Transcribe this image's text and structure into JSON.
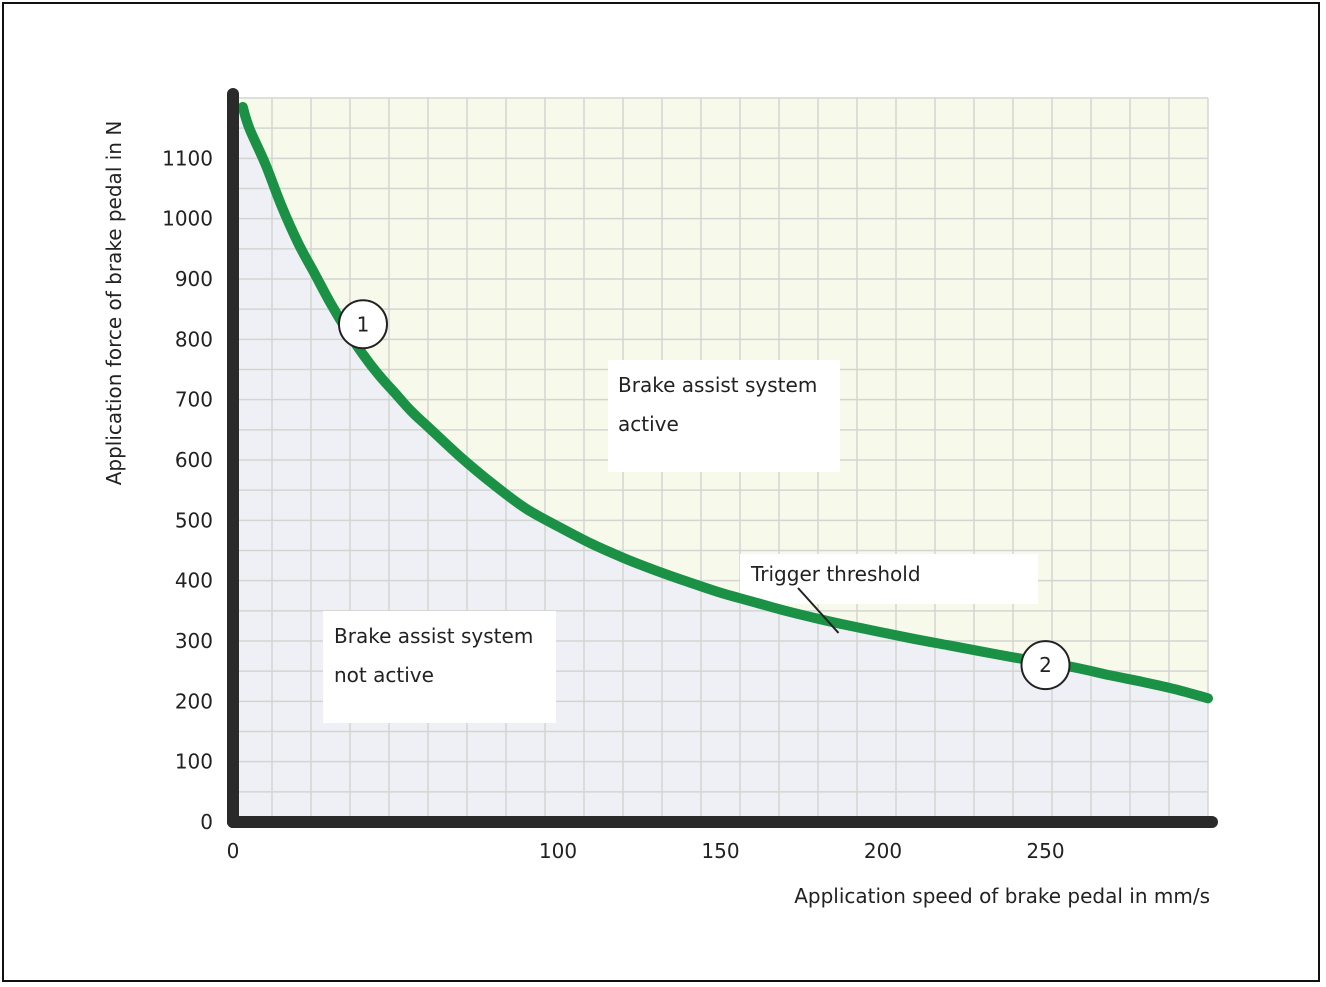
{
  "chart_data": {
    "type": "line",
    "title": "",
    "xlabel": "Application speed of brake pedal in mm/s",
    "ylabel": "Application force of brake pedal in N",
    "xlim": [
      0,
      300
    ],
    "ylim": [
      0,
      1200
    ],
    "x_ticks": [
      0,
      100,
      150,
      200,
      250
    ],
    "x_tick_labels": [
      "0",
      "100",
      "150",
      "200",
      "250"
    ],
    "y_ticks": [
      0,
      100,
      200,
      300,
      400,
      500,
      600,
      700,
      800,
      900,
      1000,
      1100
    ],
    "y_tick_labels": [
      "0",
      "100",
      "200",
      "300",
      "400",
      "500",
      "600",
      "700",
      "800",
      "900",
      "1000",
      "1100"
    ],
    "grid": true,
    "series": [
      {
        "name": "",
        "color": "#1a9145",
        "x": [
          3,
          5,
          10,
          15,
          20,
          25,
          30,
          35,
          40,
          45,
          50,
          55,
          60,
          70,
          80,
          90,
          100,
          110,
          120,
          130,
          140,
          150,
          160,
          170,
          180,
          190,
          200,
          210,
          220,
          230,
          240,
          250,
          260,
          270,
          280,
          290,
          300
        ],
        "y": [
          1185,
          1150,
          1090,
          1020,
          960,
          910,
          860,
          815,
          775,
          740,
          710,
          680,
          655,
          605,
          560,
          520,
          490,
          462,
          438,
          417,
          398,
          380,
          365,
          350,
          337,
          325,
          314,
          303,
          293,
          283,
          273,
          264,
          255,
          243,
          232,
          220,
          205
        ]
      }
    ],
    "regions": [
      {
        "name": "active",
        "label_lines": [
          "Brake assist system",
          "active"
        ],
        "color": "#f7f9ea"
      },
      {
        "name": "not-active",
        "label_lines": [
          "Brake assist system",
          "not active"
        ],
        "color": "#eef0f5"
      }
    ],
    "annotations": [
      {
        "id": "threshold",
        "text": "Trigger threshold",
        "x": 190,
        "y": 320
      },
      {
        "id": "marker-1",
        "text": "1",
        "x": 40,
        "y": 825
      },
      {
        "id": "marker-2",
        "text": "2",
        "x": 250,
        "y": 260
      }
    ]
  }
}
